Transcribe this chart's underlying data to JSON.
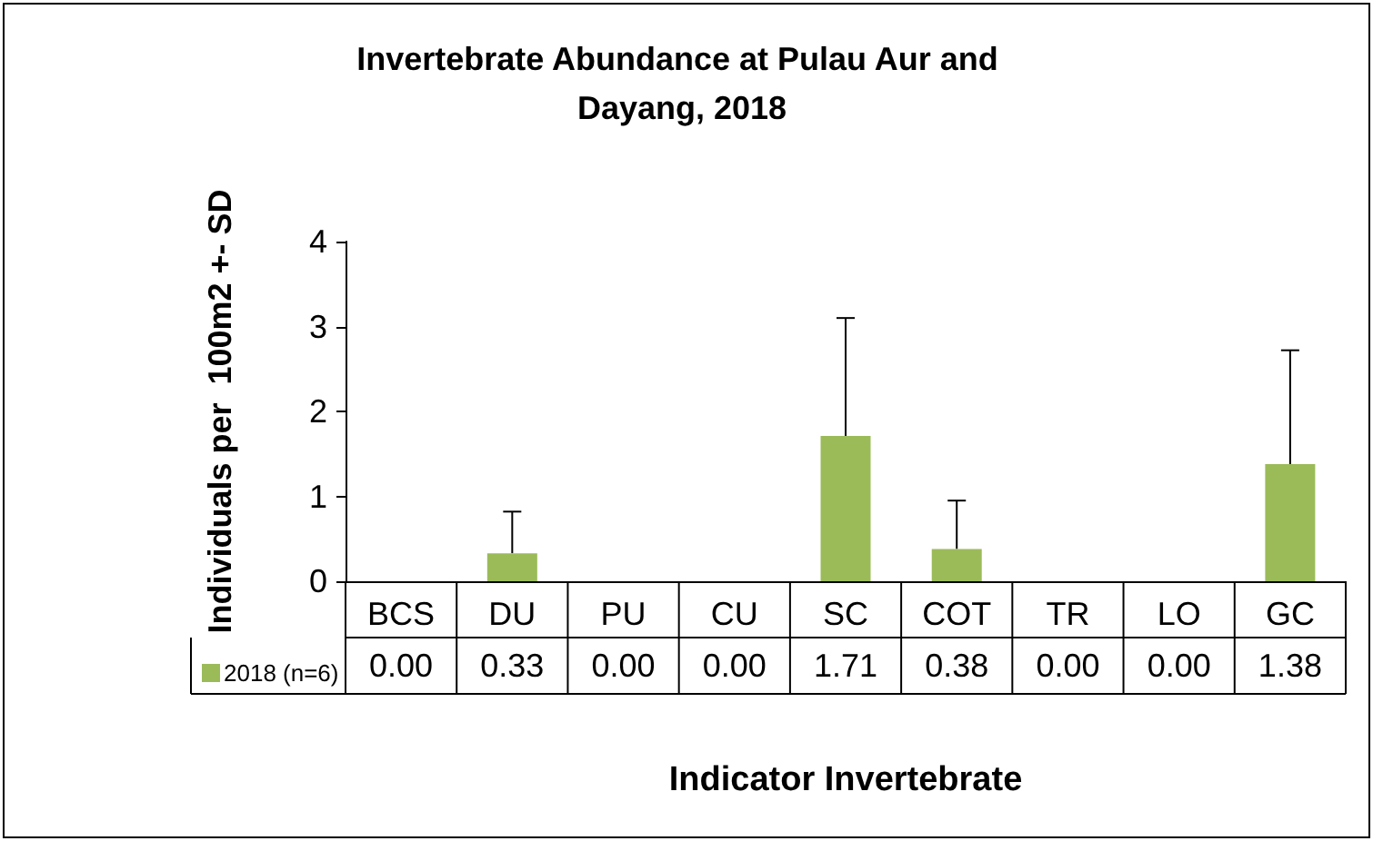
{
  "chart_data": {
    "type": "bar",
    "title": "Invertebrate Abundance at Pulau Aur and Dayang, 2018",
    "xlabel": "Indicator Invertebrate",
    "ylabel": "Individuals per  100m2 +- SD",
    "categories": [
      "BCS",
      "DU",
      "PU",
      "CU",
      "SC",
      "COT",
      "TR",
      "LO",
      "GC"
    ],
    "series": [
      {
        "name": "2018 (n=6)",
        "color": "#9bbb59",
        "values": [
          0,
          0.33,
          0,
          0,
          1.71,
          0.38,
          0,
          0,
          1.38
        ],
        "value_labels": [
          "0.00",
          "0.33",
          "0.00",
          "0.00",
          "1.71",
          "0.38",
          "0.00",
          "0.00",
          "1.38"
        ],
        "errors": [
          null,
          [
            0.33,
            0.82
          ],
          null,
          null,
          [
            1.71,
            3.1
          ],
          [
            0.38,
            0.95
          ],
          null,
          null,
          [
            1.38,
            2.72
          ]
        ]
      }
    ],
    "ylim": [
      0,
      4
    ],
    "yticks": [
      0,
      1,
      2,
      3,
      4
    ],
    "grid": false,
    "legend": "bottom left"
  }
}
